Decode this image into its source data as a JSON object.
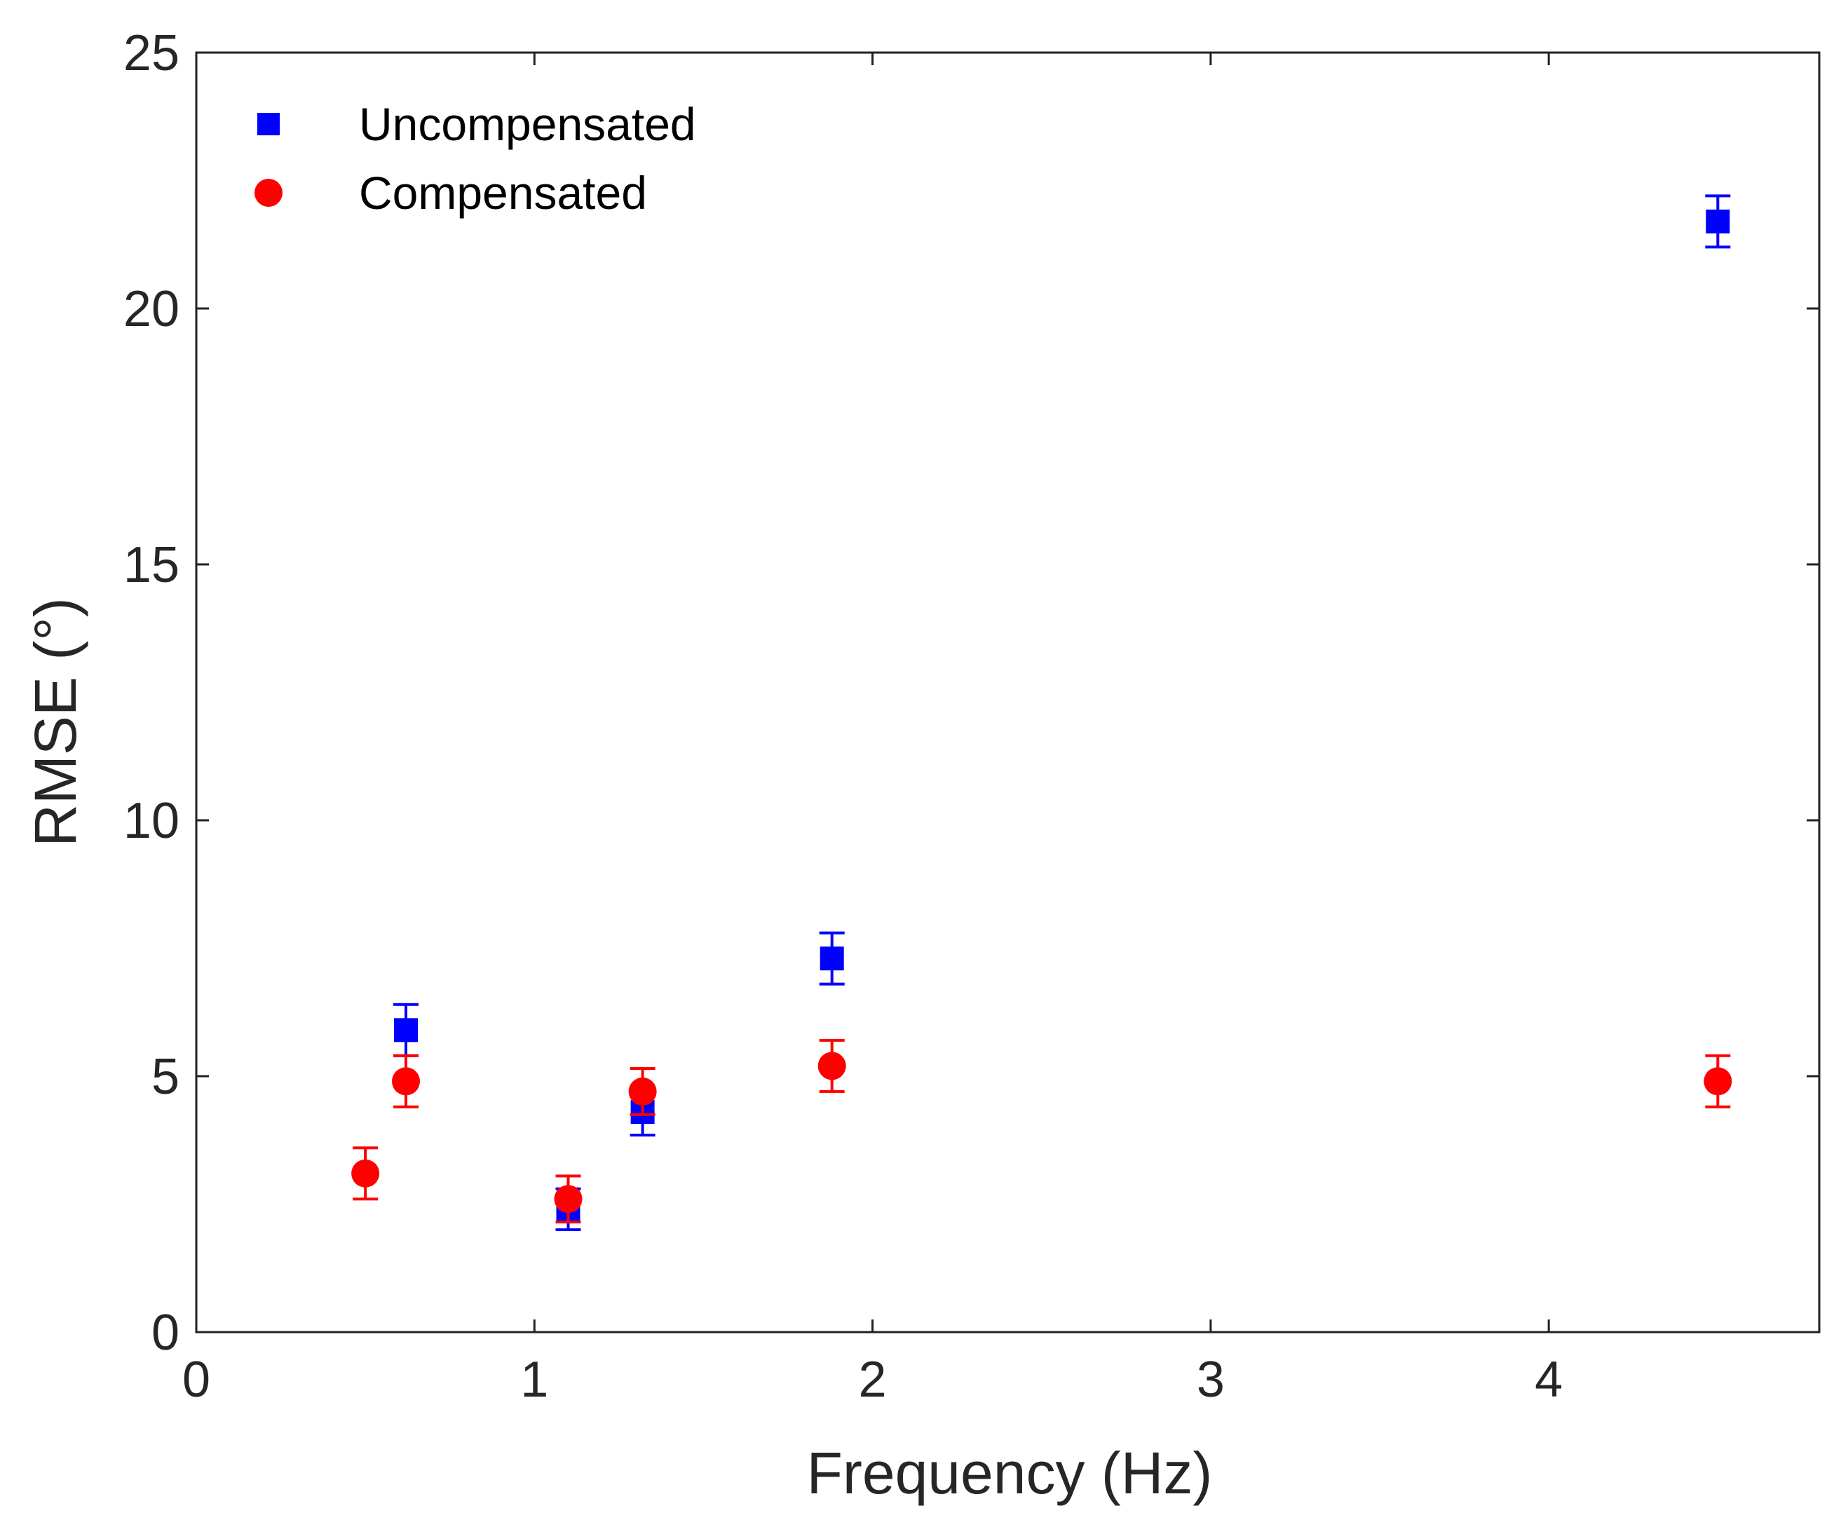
{
  "chart_data": {
    "type": "scatter",
    "title": "",
    "xlabel": "Frequency (Hz)",
    "ylabel": "RMSE (°)",
    "xlim": [
      0,
      4.8
    ],
    "ylim": [
      0,
      25
    ],
    "x_ticks": [
      0,
      1,
      2,
      3,
      4
    ],
    "y_ticks": [
      0,
      5,
      10,
      15,
      20,
      25
    ],
    "grid": false,
    "legend_position": "top-left",
    "series": [
      {
        "name": "Uncompensated",
        "marker": "square",
        "color": "#0000ff",
        "points": [
          {
            "x": 0.62,
            "y": 5.9,
            "err": 0.5
          },
          {
            "x": 1.1,
            "y": 2.4,
            "err": 0.4
          },
          {
            "x": 1.32,
            "y": 4.3,
            "err": 0.45
          },
          {
            "x": 1.88,
            "y": 7.3,
            "err": 0.5
          },
          {
            "x": 4.5,
            "y": 21.7,
            "err": 0.5
          }
        ]
      },
      {
        "name": "Compensated",
        "marker": "circle",
        "color": "#ff0000",
        "points": [
          {
            "x": 0.5,
            "y": 3.1,
            "err": 0.5
          },
          {
            "x": 0.62,
            "y": 4.9,
            "err": 0.5
          },
          {
            "x": 1.1,
            "y": 2.6,
            "err": 0.45
          },
          {
            "x": 1.32,
            "y": 4.7,
            "err": 0.45
          },
          {
            "x": 1.88,
            "y": 5.2,
            "err": 0.5
          },
          {
            "x": 4.5,
            "y": 4.9,
            "err": 0.5
          }
        ]
      }
    ]
  }
}
